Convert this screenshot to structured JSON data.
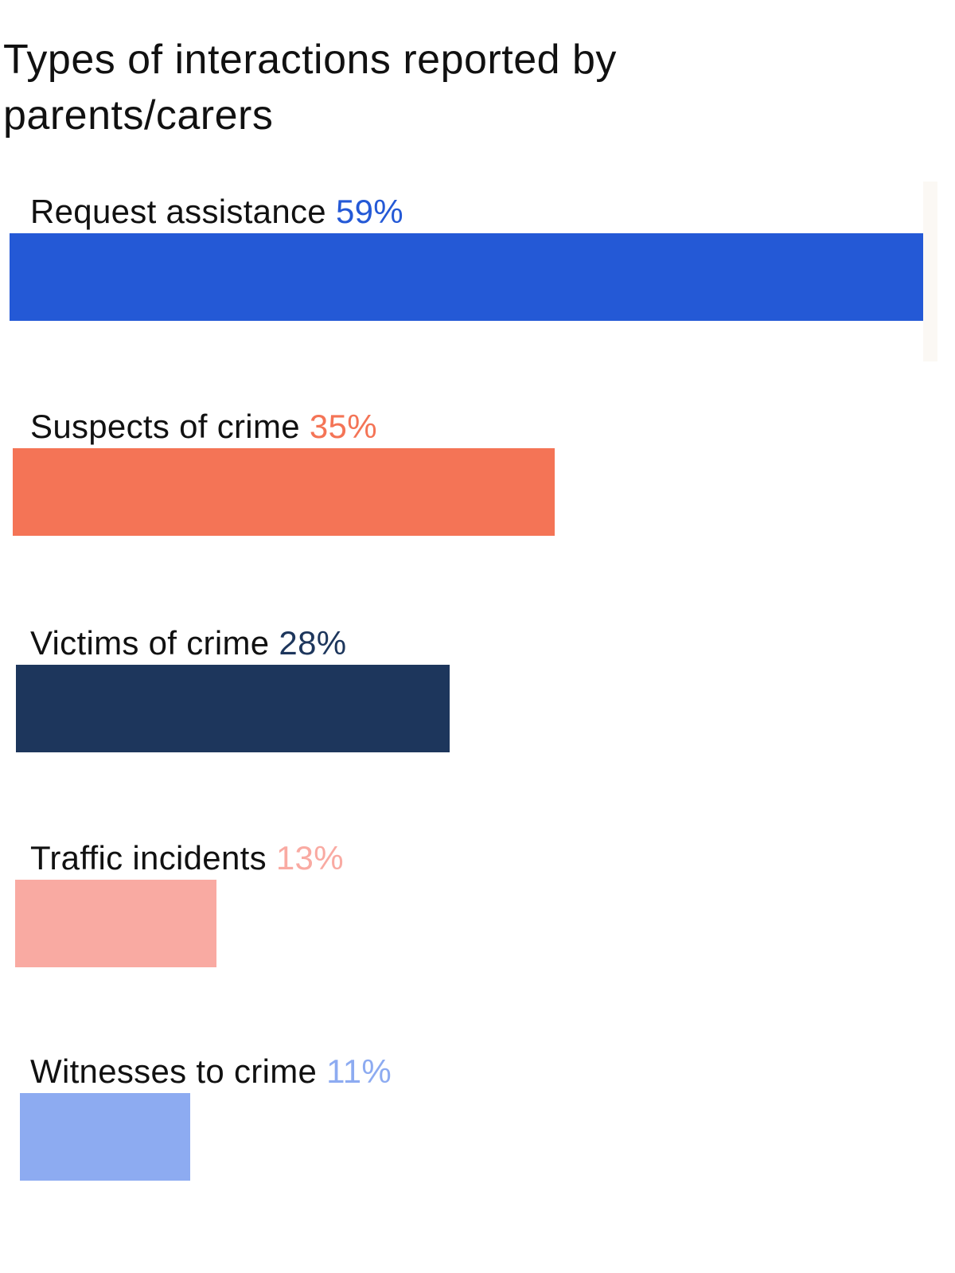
{
  "chart_data": {
    "type": "bar",
    "orientation": "horizontal",
    "title": "Types of interactions reported by parents/carers",
    "xlabel": "",
    "ylabel": "",
    "xlim": [
      0,
      59
    ],
    "grid": false,
    "legend": "none",
    "categories": [
      "Request assistance",
      "Suspects of crime",
      "Victims of crime",
      "Traffic incidents",
      "Witnesses to crime"
    ],
    "values": [
      59,
      35,
      28,
      13,
      11
    ],
    "value_labels": [
      "59%",
      "35%",
      "28%",
      "13%",
      "11%"
    ],
    "colors": [
      "#2459d6",
      "#f47456",
      "#1d365c",
      "#f9aaa2",
      "#8dabf1"
    ]
  }
}
